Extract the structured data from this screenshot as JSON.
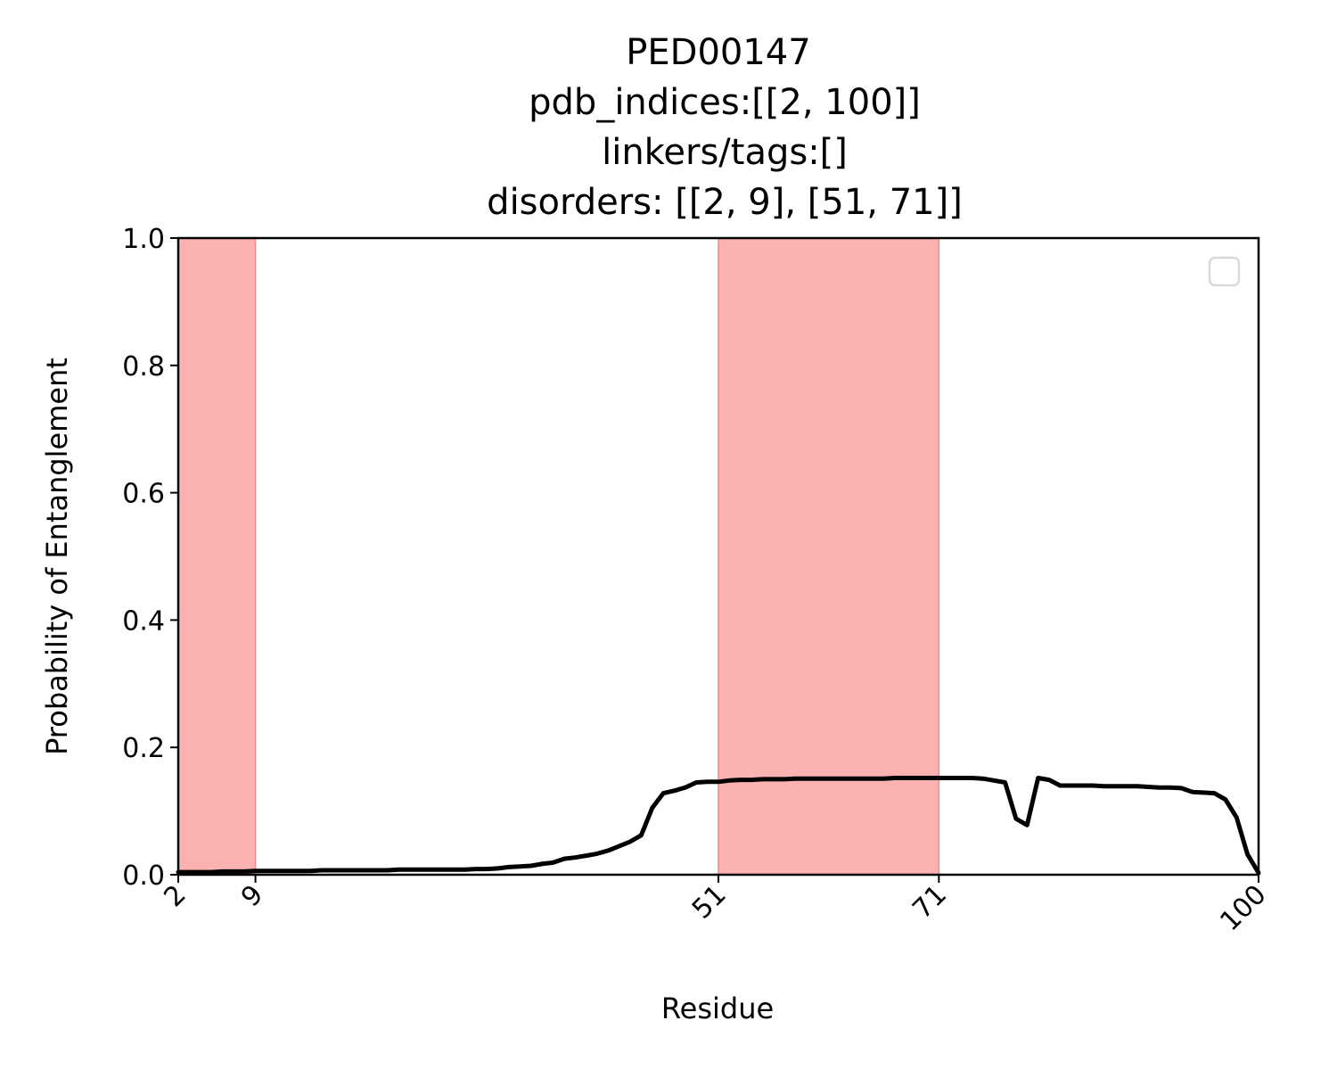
{
  "chart_data": {
    "type": "line",
    "title_lines": [
      "PED00147",
      "pdb_indices:[[2, 100]]",
      "linkers/tags:[]",
      "disorders: [[2, 9], [51, 71]]"
    ],
    "xlabel": "Residue",
    "ylabel": "Probability of Entanglement",
    "xlim": [
      2,
      100
    ],
    "ylim": [
      0,
      1.0
    ],
    "xticks": [
      2,
      9,
      51,
      71,
      100
    ],
    "xtick_labels": [
      "2",
      "9",
      "51",
      "71",
      "100"
    ],
    "yticks": [
      0.0,
      0.2,
      0.4,
      0.6,
      0.8,
      1.0
    ],
    "ytick_labels": [
      "0.0",
      "0.2",
      "0.4",
      "0.6",
      "0.8",
      "1.0"
    ],
    "shaded_regions": [
      [
        2,
        9
      ],
      [
        51,
        71
      ]
    ],
    "legend": "top-right",
    "colors": {
      "line": "#000000",
      "shade": "#fdb2b2",
      "shade_edge": "#f28c8c"
    },
    "x": [
      2,
      3,
      4,
      5,
      6,
      7,
      8,
      9,
      10,
      11,
      12,
      13,
      14,
      15,
      16,
      17,
      18,
      19,
      20,
      21,
      22,
      23,
      24,
      25,
      26,
      27,
      28,
      29,
      30,
      31,
      32,
      33,
      34,
      35,
      36,
      37,
      38,
      39,
      40,
      41,
      42,
      43,
      44,
      45,
      46,
      47,
      48,
      49,
      50,
      51,
      52,
      53,
      54,
      55,
      56,
      57,
      58,
      59,
      60,
      61,
      62,
      63,
      64,
      65,
      66,
      67,
      68,
      69,
      70,
      71,
      72,
      73,
      74,
      75,
      76,
      77,
      78,
      79,
      80,
      81,
      82,
      83,
      84,
      85,
      86,
      87,
      88,
      89,
      90,
      91,
      92,
      93,
      94,
      95,
      96,
      97,
      98,
      99,
      100
    ],
    "y": [
      0.004,
      0.004,
      0.004,
      0.004,
      0.005,
      0.005,
      0.005,
      0.006,
      0.006,
      0.006,
      0.006,
      0.006,
      0.006,
      0.007,
      0.007,
      0.007,
      0.007,
      0.007,
      0.007,
      0.007,
      0.008,
      0.008,
      0.008,
      0.008,
      0.008,
      0.008,
      0.008,
      0.009,
      0.009,
      0.01,
      0.012,
      0.013,
      0.014,
      0.017,
      0.019,
      0.025,
      0.027,
      0.03,
      0.033,
      0.038,
      0.045,
      0.052,
      0.062,
      0.105,
      0.128,
      0.132,
      0.137,
      0.145,
      0.146,
      0.146,
      0.148,
      0.149,
      0.149,
      0.15,
      0.15,
      0.15,
      0.151,
      0.151,
      0.151,
      0.151,
      0.151,
      0.151,
      0.151,
      0.151,
      0.151,
      0.152,
      0.152,
      0.152,
      0.152,
      0.152,
      0.152,
      0.152,
      0.152,
      0.151,
      0.148,
      0.145,
      0.088,
      0.078,
      0.152,
      0.149,
      0.14,
      0.14,
      0.14,
      0.14,
      0.139,
      0.139,
      0.139,
      0.139,
      0.138,
      0.137,
      0.137,
      0.136,
      0.13,
      0.129,
      0.128,
      0.118,
      0.09,
      0.032,
      0.003
    ]
  }
}
